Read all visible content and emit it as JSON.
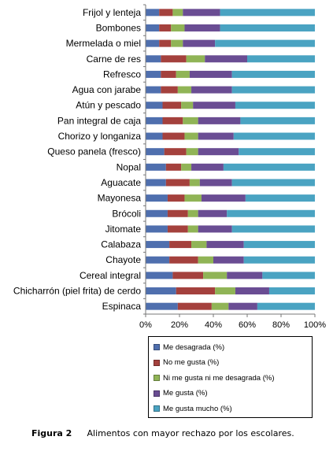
{
  "chart_data": {
    "type": "bar",
    "orientation": "horizontal",
    "stacked": "percent",
    "categories": [
      "Frijol y lenteja",
      "Bombones",
      "Mermelada o miel",
      "Carne de res",
      "Refresco",
      "Agua con jarabe",
      "Atún y pescado",
      "Pan integral de caja",
      "Chorizo y longaniza",
      "Queso panela (fresco)",
      "Nopal",
      "Aguacate",
      "Mayonesa",
      "Brócoli",
      "Jitomate",
      "Calabaza",
      "Chayote",
      "Cereal integral",
      "Chicharrón (piel frita) de cerdo",
      "Espinaca"
    ],
    "series": [
      {
        "name": "Me desagrada (%)",
        "color": "#4f6fae",
        "values": [
          8,
          8,
          8,
          9,
          9,
          9,
          10,
          10,
          10,
          11,
          12,
          12,
          13,
          13,
          13,
          14,
          14,
          16,
          18,
          19
        ]
      },
      {
        "name": "No me gusta (%)",
        "color": "#a4413d",
        "values": [
          8,
          7,
          7,
          15,
          9,
          10,
          11,
          12,
          13,
          13,
          9,
          14,
          10,
          12,
          12,
          13,
          17,
          18,
          23,
          20
        ]
      },
      {
        "name": "Ni me gusta ni me desagrada (%)",
        "color": "#90b456",
        "values": [
          6,
          8,
          7,
          11,
          8,
          8,
          7,
          9,
          8,
          7,
          6,
          6,
          10,
          6,
          6,
          9,
          9,
          14,
          12,
          10
        ]
      },
      {
        "name": "Me gusta (%)",
        "color": "#6a4d93",
        "values": [
          22,
          21,
          19,
          25,
          25,
          24,
          25,
          25,
          21,
          24,
          19,
          19,
          26,
          17,
          20,
          22,
          18,
          21,
          20,
          17
        ]
      },
      {
        "name": "Me gusta mucho (%)",
        "color": "#4aa3c2",
        "values": [
          56,
          56,
          59,
          40,
          49,
          49,
          47,
          44,
          48,
          45,
          54,
          49,
          41,
          52,
          49,
          42,
          42,
          31,
          27,
          34
        ]
      }
    ],
    "xlim": [
      0,
      100
    ],
    "xticks": [
      "0%",
      "20%",
      "40%",
      "60%",
      "80%",
      "100%"
    ],
    "grid": false,
    "legend_position": "bottom"
  },
  "caption": {
    "label": "Figura 2",
    "text": "Alimentos con mayor rechazo por los escolares."
  }
}
